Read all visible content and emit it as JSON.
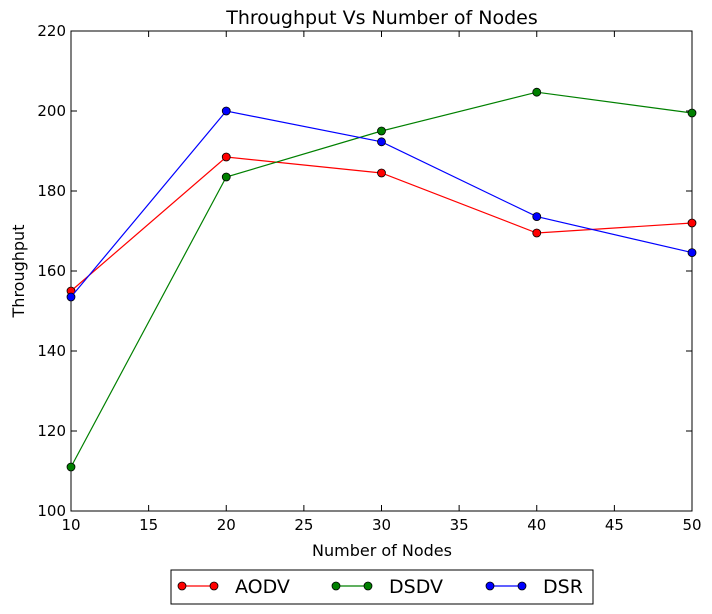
{
  "chart_data": {
    "type": "line",
    "title": "Throughput Vs Number of Nodes",
    "xlabel": "Number of Nodes",
    "ylabel": "Throughput",
    "xlim": [
      10,
      50
    ],
    "ylim": [
      100,
      220
    ],
    "xticks": [
      10,
      15,
      20,
      25,
      30,
      35,
      40,
      45,
      50
    ],
    "yticks": [
      100,
      120,
      140,
      160,
      180,
      200,
      220
    ],
    "x": [
      10,
      20,
      30,
      40,
      50
    ],
    "grid": false,
    "legend_position": "bottom-center, outside plot",
    "series": [
      {
        "name": "AODV",
        "color": "#ff0000",
        "values": [
          155.0,
          188.5,
          184.5,
          169.5,
          172.0
        ]
      },
      {
        "name": "DSDV",
        "color": "#008000",
        "values": [
          111.0,
          183.5,
          195.0,
          204.7,
          199.5
        ]
      },
      {
        "name": "DSR",
        "color": "#0000ff",
        "values": [
          153.5,
          200.0,
          192.3,
          173.6,
          164.6
        ]
      }
    ]
  }
}
